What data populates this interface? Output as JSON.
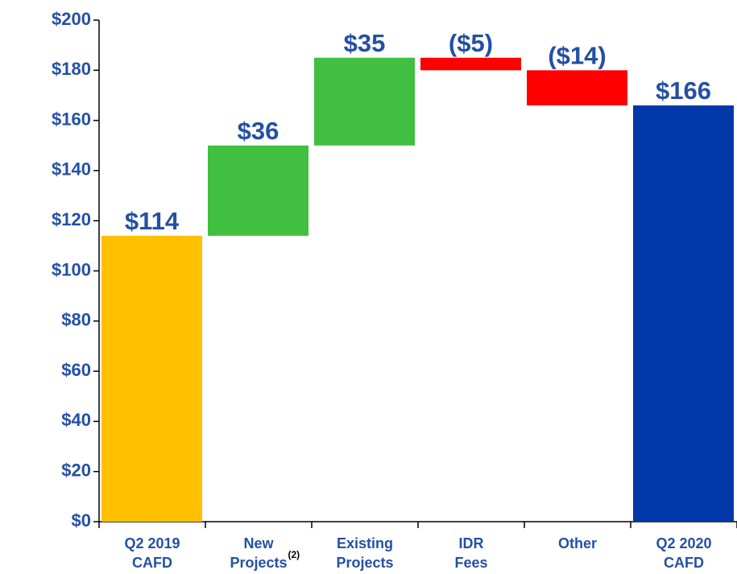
{
  "chart_data": {
    "type": "waterfall",
    "categories": [
      "Q2 2019 CAFD",
      "New Projects",
      "Existing Projects",
      "IDR Fees",
      "Other",
      "Q2 2020 CAFD"
    ],
    "category_notes": [
      null,
      "(2)",
      null,
      null,
      null,
      null
    ],
    "values": [
      114,
      36,
      35,
      -5,
      -14,
      166
    ],
    "value_labels": [
      "$114",
      "$36",
      "$35",
      "($5)",
      "($14)",
      "$166"
    ],
    "measure": [
      "absolute",
      "relative",
      "relative",
      "relative",
      "relative",
      "total"
    ],
    "colors": [
      "#ffc000",
      "#40bf40",
      "#40bf40",
      "#ff0000",
      "#ff0000",
      "#0038a8"
    ],
    "ylim": [
      0,
      200
    ],
    "yticks": [
      {
        "value": 0,
        "label": "$0"
      },
      {
        "value": 20,
        "label": "$20"
      },
      {
        "value": 40,
        "label": "$40"
      },
      {
        "value": 60,
        "label": "$60"
      },
      {
        "value": 80,
        "label": "$80"
      },
      {
        "value": 100,
        "label": "$100"
      },
      {
        "value": 120,
        "label": "$120"
      },
      {
        "value": 140,
        "label": "$140"
      },
      {
        "value": 160,
        "label": "$160"
      },
      {
        "value": 180,
        "label": "$180"
      },
      {
        "value": 200,
        "label": "$200"
      }
    ]
  }
}
